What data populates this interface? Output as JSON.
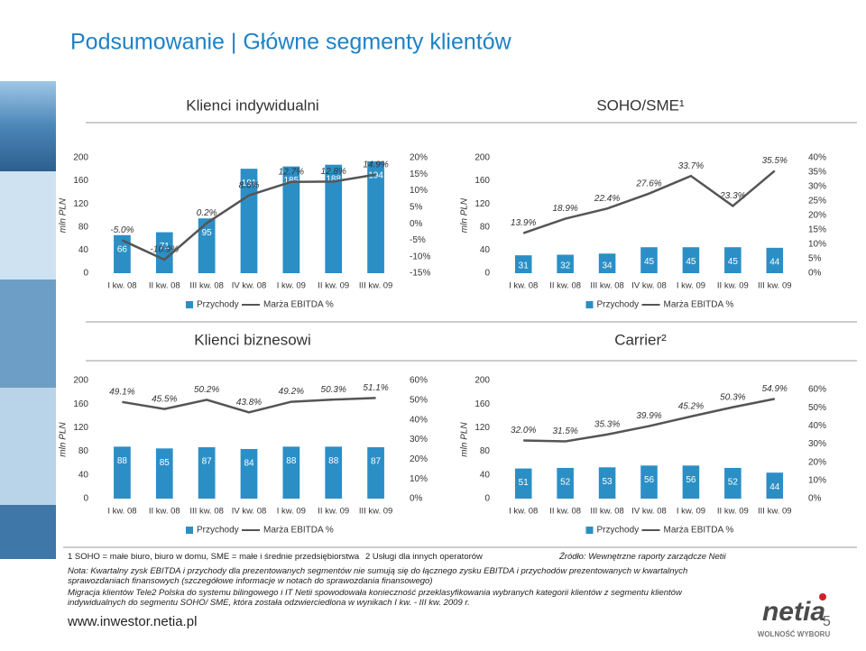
{
  "title": "Podsumowanie | Główne segmenty klientów",
  "chart_data": [
    {
      "type": "combo",
      "title": "Klienci indywidualni",
      "ylabel": "mln PLN",
      "categories": [
        "I kw. 08",
        "II kw. 08",
        "III kw. 08",
        "IV kw. 08",
        "I kw. 09",
        "II kw. 09",
        "III kw. 09"
      ],
      "ylim": [
        0,
        200
      ],
      "yticks": [
        0,
        40,
        80,
        120,
        160,
        200
      ],
      "y2lim": [
        -15,
        20
      ],
      "y2ticks": [
        {
          "value": -15,
          "label": "-15%"
        },
        {
          "value": -10,
          "label": "-10%"
        },
        {
          "value": -5,
          "label": "-5%"
        },
        {
          "value": 0,
          "label": "0%"
        },
        {
          "value": 5,
          "label": "5%"
        },
        {
          "value": 10,
          "label": "10%"
        },
        {
          "value": 15,
          "label": "15%"
        },
        {
          "value": 20,
          "label": "20%"
        }
      ],
      "series": [
        {
          "name": "Przychody",
          "color": "#2b8fc6",
          "values": [
            66,
            71,
            95,
            181,
            185,
            188,
            194
          ]
        },
        {
          "name": "Marża EBITDA %",
          "color": "#555555",
          "axis": "y2",
          "values": [
            -5.0,
            -10.9,
            0.2,
            8.6,
            12.7,
            12.8,
            14.9
          ],
          "value_labels": [
            "-5.0%",
            "-10.9%",
            "0.2%",
            "8.6%",
            "12.7%",
            "12.8%",
            "14.9%"
          ]
        }
      ]
    },
    {
      "type": "combo",
      "title": "SOHO/SME¹",
      "ylabel": "mln PLN",
      "categories": [
        "I kw. 08",
        "II kw. 08",
        "III kw. 08",
        "IV kw. 08",
        "I kw. 09",
        "II kw. 09",
        "III kw. 09"
      ],
      "ylim": [
        0,
        200
      ],
      "yticks": [
        0,
        40,
        80,
        120,
        160,
        200
      ],
      "y2lim": [
        0,
        40
      ],
      "y2ticks": [
        {
          "value": 0,
          "label": "0%"
        },
        {
          "value": 5,
          "label": "5%"
        },
        {
          "value": 10,
          "label": "10%"
        },
        {
          "value": 15,
          "label": "15%"
        },
        {
          "value": 20,
          "label": "20%"
        },
        {
          "value": 25,
          "label": "25%"
        },
        {
          "value": 30,
          "label": "30%"
        },
        {
          "value": 35,
          "label": "35%"
        },
        {
          "value": 40,
          "label": "40%"
        }
      ],
      "series": [
        {
          "name": "Przychody",
          "color": "#2b8fc6",
          "values": [
            31,
            32,
            34,
            45,
            45,
            45,
            44
          ]
        },
        {
          "name": "Marża EBITDA %",
          "color": "#555555",
          "axis": "y2",
          "values": [
            13.9,
            18.9,
            22.4,
            27.6,
            33.7,
            23.3,
            35.5
          ],
          "value_labels": [
            "13.9%",
            "18.9%",
            "22.4%",
            "27.6%",
            "33.7%",
            "23.3%",
            "35.5%"
          ]
        }
      ]
    },
    {
      "type": "combo",
      "title": "Klienci biznesowi",
      "ylabel": "mln PLN",
      "categories": [
        "I kw. 08",
        "II kw. 08",
        "III kw. 08",
        "IV kw. 08",
        "I kw. 09",
        "II kw. 09",
        "III kw. 09"
      ],
      "ylim": [
        0,
        200
      ],
      "yticks": [
        0,
        40,
        80,
        120,
        160,
        200
      ],
      "y2lim": [
        0,
        60
      ],
      "y2ticks": [
        {
          "value": 0,
          "label": "0%"
        },
        {
          "value": 10,
          "label": "10%"
        },
        {
          "value": 20,
          "label": "20%"
        },
        {
          "value": 30,
          "label": "30%"
        },
        {
          "value": 40,
          "label": "40%"
        },
        {
          "value": 50,
          "label": "50%"
        },
        {
          "value": 60,
          "label": "60%"
        }
      ],
      "series": [
        {
          "name": "Przychody",
          "color": "#2b8fc6",
          "values": [
            88,
            85,
            87,
            84,
            88,
            88,
            87
          ]
        },
        {
          "name": "Marża EBITDA %",
          "color": "#555555",
          "axis": "y2",
          "values": [
            49.1,
            45.5,
            50.2,
            43.8,
            49.2,
            50.3,
            51.1
          ],
          "value_labels": [
            "49.1%",
            "45.5%",
            "50.2%",
            "43.8%",
            "49.2%",
            "50.3%",
            "51.1%"
          ]
        }
      ]
    },
    {
      "type": "combo",
      "title": "Carrier²",
      "ylabel": "mln PLN",
      "categories": [
        "I kw. 08",
        "II kw. 08",
        "III kw. 08",
        "IV kw. 08",
        "I kw. 09",
        "II kw. 09",
        "III kw. 09"
      ],
      "ylim": [
        0,
        200
      ],
      "yticks": [
        0,
        40,
        80,
        120,
        160,
        200
      ],
      "y2lim": [
        0,
        65
      ],
      "y2ticks": [
        {
          "value": 0,
          "label": "0%"
        },
        {
          "value": 10,
          "label": "10%"
        },
        {
          "value": 20,
          "label": "20%"
        },
        {
          "value": 30,
          "label": "30%"
        },
        {
          "value": 40,
          "label": "40%"
        },
        {
          "value": 50,
          "label": "50%"
        },
        {
          "value": 60,
          "label": "60%"
        }
      ],
      "series": [
        {
          "name": "Przychody",
          "color": "#2b8fc6",
          "values": [
            51,
            52,
            53,
            56,
            56,
            52,
            44
          ]
        },
        {
          "name": "Marża EBITDA %",
          "color": "#555555",
          "axis": "y2",
          "values": [
            32.0,
            31.5,
            35.3,
            39.9,
            45.2,
            50.3,
            54.9
          ],
          "value_labels": [
            "32.0%",
            "31.5%",
            "35.3%",
            "39.9%",
            "45.2%",
            "50.3%",
            "54.9%"
          ]
        }
      ]
    }
  ],
  "footnotes": {
    "note1": "1 SOHO = małe biuro, biuro w domu, SME = małe i średnie przedsiębiorstwa",
    "note2": "2 Usługi dla innych operatorów",
    "source": "Źródło: Wewnętrzne raporty zarządcze Netii",
    "nota": "Nota: Kwartalny zysk EBITDA i przychody dla prezentowanych segmentów nie sumują się do łącznego zysku EBITDA i przychodów prezentowanych w kwartalnych sprawozdaniach finansowych (szczegółowe informacje w notach do sprawozdania finansowego)",
    "migration": "Migracja klientów Tele2 Polska do systemu bilingowego i IT Netii spowodowała konieczność przeklasyfikowania wybranych kategorii klientów z segmentu klientów indywidualnych do segmentu SOHO/ SME, która została odzwierciedlona w wynikach I kw. - III kw. 2009 r."
  },
  "footer": {
    "url": "www.inwestor.netia.pl",
    "page": "5",
    "logo": "netia",
    "slogan": "WOLNOŚĆ WYBORU"
  }
}
